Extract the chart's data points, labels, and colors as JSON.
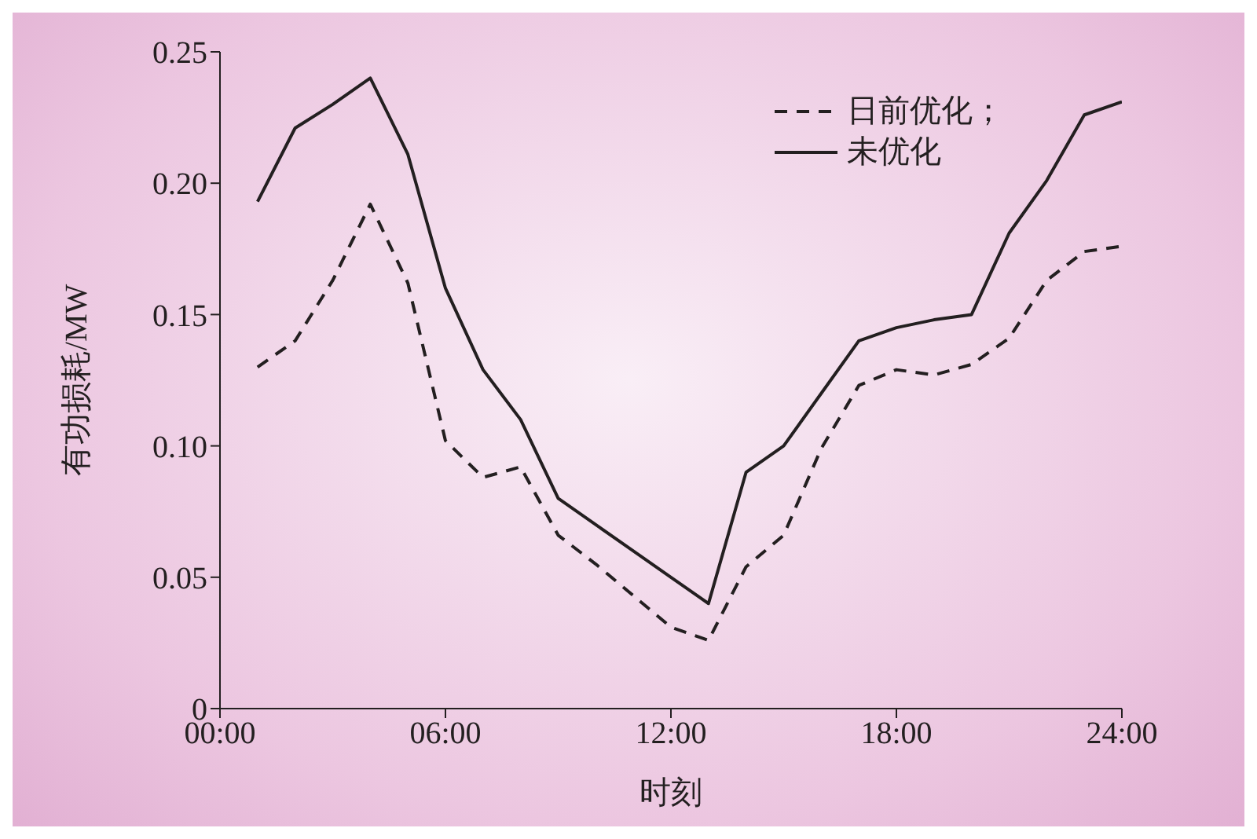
{
  "chart_data": {
    "type": "line",
    "xlabel": "时刻",
    "ylabel": "有功损耗/MW",
    "x": [
      1,
      2,
      3,
      4,
      5,
      6,
      7,
      8,
      9,
      10,
      11,
      12,
      13,
      14,
      15,
      16,
      17,
      18,
      19,
      20,
      21,
      22,
      23,
      24
    ],
    "series": [
      {
        "name": "日前优化；",
        "color": "#231f20",
        "line_style": "dashed",
        "values": [
          0.13,
          0.14,
          0.163,
          0.192,
          0.162,
          0.102,
          0.088,
          0.092,
          0.066,
          0.055,
          0.043,
          0.031,
          0.026,
          0.054,
          0.066,
          0.099,
          0.123,
          0.129,
          0.127,
          0.131,
          0.141,
          0.163,
          0.174,
          0.176
        ]
      },
      {
        "name": "未优化",
        "color": "#231f20",
        "line_style": "solid",
        "values": [
          0.193,
          0.221,
          0.23,
          0.24,
          0.211,
          0.16,
          0.129,
          0.11,
          0.08,
          0.07,
          0.06,
          0.05,
          0.04,
          0.09,
          0.1,
          0.12,
          0.14,
          0.145,
          0.148,
          0.15,
          0.181,
          0.201,
          0.226,
          0.231
        ]
      }
    ],
    "xlim": [
      0,
      24
    ],
    "xticks": [
      {
        "value": 0,
        "label": "00:00"
      },
      {
        "value": 6,
        "label": "06:00"
      },
      {
        "value": 12,
        "label": "12:00"
      },
      {
        "value": 18,
        "label": "18:00"
      },
      {
        "value": 24,
        "label": "24:00"
      }
    ],
    "ylim": [
      0,
      0.25
    ],
    "yticks": [
      {
        "value": 0,
        "label": "0"
      },
      {
        "value": 0.05,
        "label": "0.05"
      },
      {
        "value": 0.1,
        "label": "0.10"
      },
      {
        "value": 0.15,
        "label": "0.15"
      },
      {
        "value": 0.2,
        "label": "0.20"
      },
      {
        "value": 0.25,
        "label": "0.25"
      }
    ],
    "grid": false,
    "legend": "top right",
    "marker": "none"
  }
}
